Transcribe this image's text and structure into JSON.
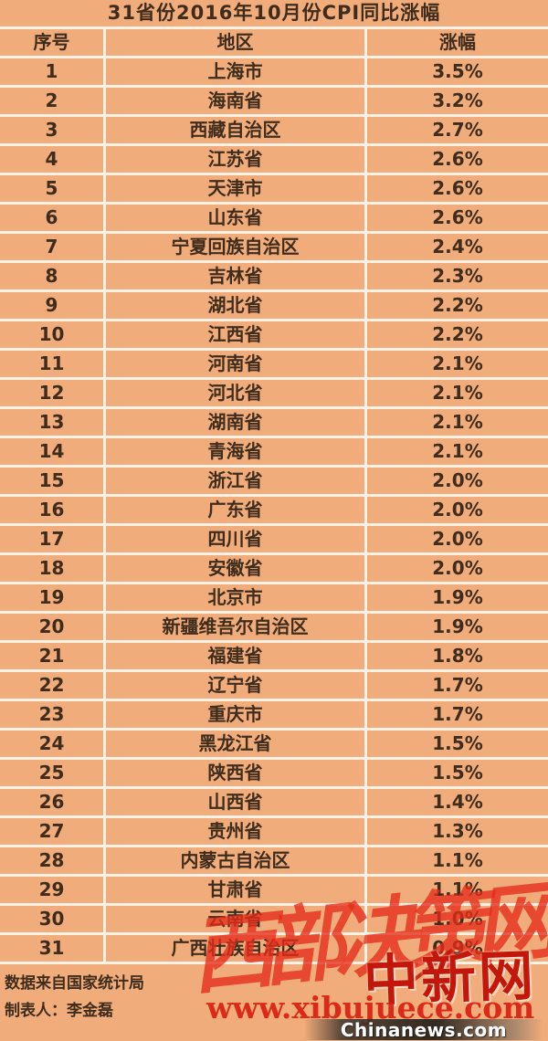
{
  "chart_data": {
    "type": "table",
    "title": "31省份2016年10月份CPI同比涨幅",
    "columns": [
      "序号",
      "地区",
      "涨幅"
    ],
    "rows": [
      [
        "1",
        "上海市",
        "3.5%"
      ],
      [
        "2",
        "海南省",
        "3.2%"
      ],
      [
        "3",
        "西藏自治区",
        "2.7%"
      ],
      [
        "4",
        "江苏省",
        "2.6%"
      ],
      [
        "5",
        "天津市",
        "2.6%"
      ],
      [
        "6",
        "山东省",
        "2.6%"
      ],
      [
        "7",
        "宁夏回族自治区",
        "2.4%"
      ],
      [
        "8",
        "吉林省",
        "2.3%"
      ],
      [
        "9",
        "湖北省",
        "2.2%"
      ],
      [
        "10",
        "江西省",
        "2.2%"
      ],
      [
        "11",
        "河南省",
        "2.1%"
      ],
      [
        "12",
        "河北省",
        "2.1%"
      ],
      [
        "13",
        "湖南省",
        "2.1%"
      ],
      [
        "14",
        "青海省",
        "2.1%"
      ],
      [
        "15",
        "浙江省",
        "2.0%"
      ],
      [
        "16",
        "广东省",
        "2.0%"
      ],
      [
        "17",
        "四川省",
        "2.0%"
      ],
      [
        "18",
        "安徽省",
        "2.0%"
      ],
      [
        "19",
        "北京市",
        "1.9%"
      ],
      [
        "20",
        "新疆维吾尔自治区",
        "1.9%"
      ],
      [
        "21",
        "福建省",
        "1.8%"
      ],
      [
        "22",
        "辽宁省",
        "1.7%"
      ],
      [
        "23",
        "重庆市",
        "1.7%"
      ],
      [
        "24",
        "黑龙江省",
        "1.5%"
      ],
      [
        "25",
        "陕西省",
        "1.5%"
      ],
      [
        "26",
        "山西省",
        "1.4%"
      ],
      [
        "27",
        "贵州省",
        "1.3%"
      ],
      [
        "28",
        "内蒙古自治区",
        "1.1%"
      ],
      [
        "29",
        "甘肃省",
        "1.1%"
      ],
      [
        "30",
        "云南省",
        "1.0%"
      ],
      [
        "31",
        "广西壮族自治区",
        "0.9%"
      ]
    ]
  },
  "footer": {
    "source": "数据来自国家统计局",
    "creator": "制表人：李金磊"
  },
  "watermarks": {
    "big": "西部决策网",
    "logo": "中新网",
    "url": "www.xibujuece.com",
    "site": "Chinanews.com"
  },
  "colors": {
    "background": "#f0ac7a",
    "grid_line": "#fbf2e5",
    "text": "#3f2c1c",
    "watermark_red": "#e42c1a",
    "logo_red": "#c3170b"
  }
}
